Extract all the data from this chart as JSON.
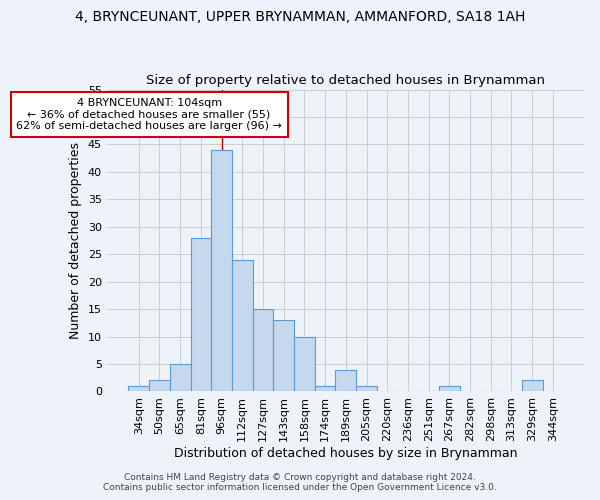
{
  "title": "4, BRYNCEUNANT, UPPER BRYNAMMAN, AMMANFORD, SA18 1AH",
  "subtitle": "Size of property relative to detached houses in Brynamman",
  "xlabel": "Distribution of detached houses by size in Brynamman",
  "ylabel": "Number of detached properties",
  "categories": [
    "34sqm",
    "50sqm",
    "65sqm",
    "81sqm",
    "96sqm",
    "112sqm",
    "127sqm",
    "143sqm",
    "158sqm",
    "174sqm",
    "189sqm",
    "205sqm",
    "220sqm",
    "236sqm",
    "251sqm",
    "267sqm",
    "282sqm",
    "298sqm",
    "313sqm",
    "329sqm",
    "344sqm"
  ],
  "values": [
    1,
    2,
    5,
    28,
    44,
    24,
    15,
    13,
    10,
    1,
    4,
    1,
    0,
    0,
    0,
    1,
    0,
    0,
    0,
    2,
    0
  ],
  "bar_color": "#c5d8ed",
  "bar_edge_color": "#5b9bd5",
  "highlight_index": 4,
  "ylim": [
    0,
    55
  ],
  "yticks": [
    0,
    5,
    10,
    15,
    20,
    25,
    30,
    35,
    40,
    45,
    50,
    55
  ],
  "annotation_text": "4 BRYNCEUNANT: 104sqm\n← 36% of detached houses are smaller (55)\n62% of semi-detached houses are larger (96) →",
  "annotation_box_color": "#ffffff",
  "annotation_box_edgecolor": "#cc0000",
  "footer_line1": "Contains HM Land Registry data © Crown copyright and database right 2024.",
  "footer_line2": "Contains public sector information licensed under the Open Government Licence v3.0.",
  "background_color": "#eef2f9",
  "title_fontsize": 10,
  "subtitle_fontsize": 9.5,
  "axis_label_fontsize": 9,
  "tick_fontsize": 8,
  "annotation_fontsize": 8,
  "footer_fontsize": 6.5
}
